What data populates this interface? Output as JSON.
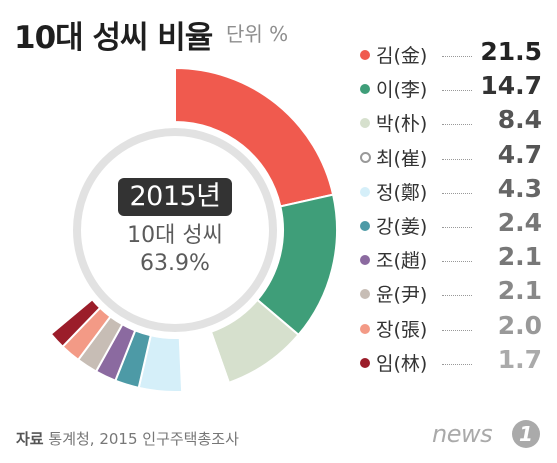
{
  "header": {
    "title": "10대 성씨 비율",
    "unit": "단위 %"
  },
  "center": {
    "year": "2015년",
    "label": "10대 성씨",
    "total": "63.9%"
  },
  "source": {
    "prefix": "자료",
    "text": "통계청, 2015 인구주택총조사"
  },
  "logo": {
    "text": "news",
    "badge": "1"
  },
  "chart_data": {
    "type": "pie",
    "title": "10대 성씨 비율",
    "unit": "%",
    "total_label": "10대 성씨 63.9%",
    "categories": [
      "김(金)",
      "이(李)",
      "박(朴)",
      "최(崔)",
      "정(鄭)",
      "강(姜)",
      "조(趙)",
      "윤(尹)",
      "장(張)",
      "임(林)"
    ],
    "values": [
      21.5,
      14.7,
      8.4,
      4.7,
      4.3,
      2.4,
      2.1,
      2.1,
      2.0,
      1.7
    ],
    "colors": [
      "#f05a4e",
      "#3f9e79",
      "#d6e0cd",
      "#ffffff",
      "#d5eff9",
      "#4d9aa6",
      "#8b6aa0",
      "#c7bdb5",
      "#f39a86",
      "#9b1d2a"
    ],
    "value_colors": [
      "#222222",
      "#333333",
      "#555555",
      "#555555",
      "#666666",
      "#777777",
      "#777777",
      "#888888",
      "#999999",
      "#aaaaaa"
    ],
    "legend_position": "right"
  }
}
